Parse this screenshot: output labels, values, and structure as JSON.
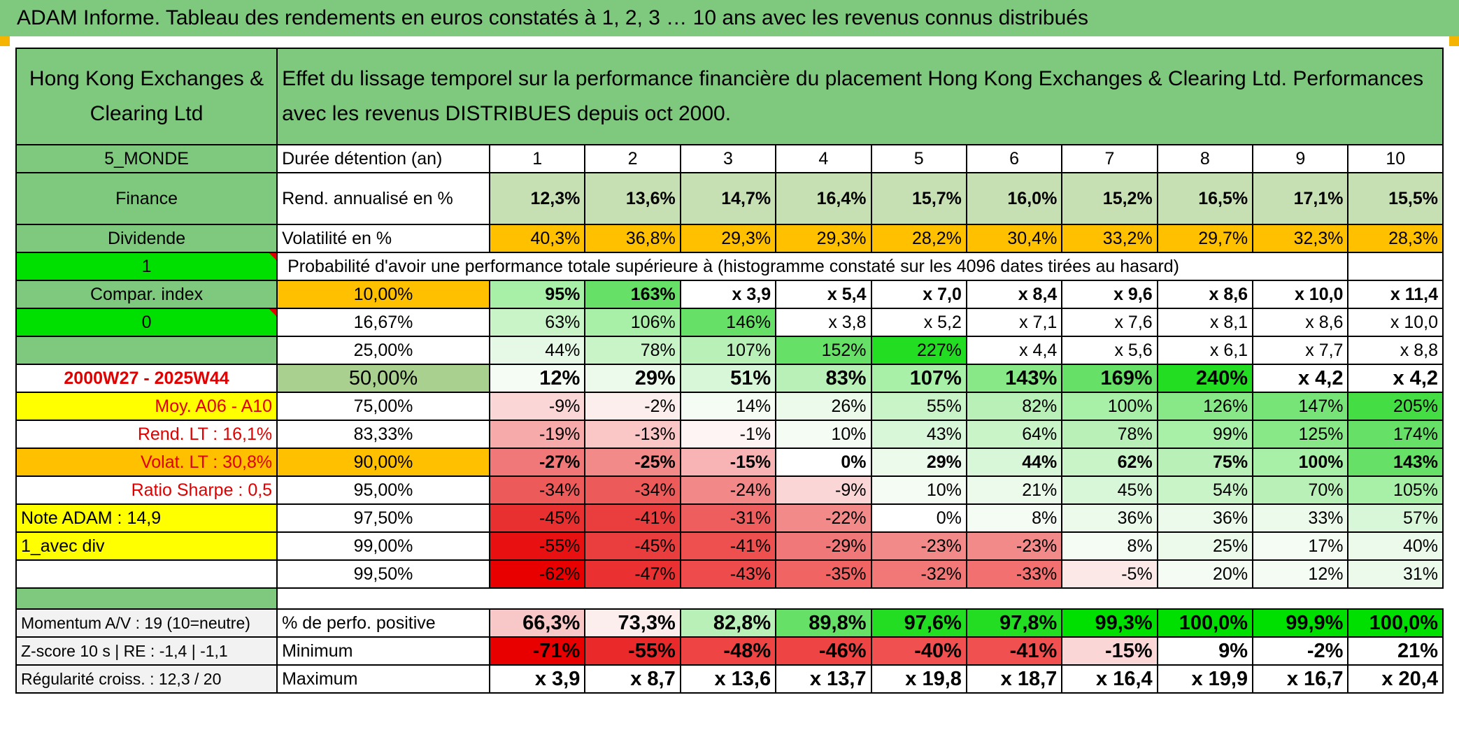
{
  "title": "ADAM Informe. Tableau des rendements en euros constatés à 1, 2, 3 … 10 ans avec les revenus connus distribués",
  "header": {
    "company": "Hong Kong Exchanges & Clearing Ltd",
    "description": "Effet du lissage temporel sur la performance financière du placement Hong Kong Exchanges & Clearing Ltd. Performances avec les revenus DISTRIBUES depuis oct 2000."
  },
  "left": {
    "region": "5_MONDE",
    "sector": "Finance",
    "type": "Dividende",
    "one": "1",
    "compar": "Compar. index",
    "zero": "0",
    "period": "2000W27 - 2025W44",
    "moy": "Moy. A06 - A10",
    "rend_lt": "Rend. LT :   16,1%",
    "volat_lt": "Volat. LT :   30,8%",
    "sharpe": "Ratio Sharpe :    0,5",
    "note": "Note ADAM : 14,9",
    "div": "1_avec div",
    "momentum": "Momentum A/V : 19 (10=neutre)",
    "zscore": "Z-score 10 s | RE : -1,4 | -1,1",
    "regularite": "Régularité croiss. : 12,3 / 20"
  },
  "duration": {
    "label": "Durée détention (an)",
    "years": [
      "1",
      "2",
      "3",
      "4",
      "5",
      "6",
      "7",
      "8",
      "9",
      "10"
    ]
  },
  "rend": {
    "label": "Rend. annualisé en %",
    "values": [
      "12,3%",
      "13,6%",
      "14,7%",
      "16,4%",
      "15,7%",
      "16,0%",
      "15,2%",
      "16,5%",
      "17,1%",
      "15,5%"
    ]
  },
  "vol": {
    "label": "Volatilité en %",
    "values": [
      "40,3%",
      "36,8%",
      "29,3%",
      "29,3%",
      "28,2%",
      "30,4%",
      "33,2%",
      "29,7%",
      "32,3%",
      "28,3%"
    ]
  },
  "prob_title": "Probabilité d'avoir une performance totale supérieure à (histogramme constaté sur les 4096 dates tirées au hasard)",
  "prob_rows": [
    {
      "pct": "10,00%",
      "cells": [
        "95%",
        "163%",
        "x 3,9",
        "x 5,4",
        "x 7,0",
        "x 8,4",
        "x 9,6",
        "x 8,6",
        "x 10,0",
        "x 11,4"
      ]
    },
    {
      "pct": "16,67%",
      "cells": [
        "63%",
        "106%",
        "146%",
        "x 3,8",
        "x 5,2",
        "x 7,1",
        "x 7,6",
        "x 8,1",
        "x 8,6",
        "x 10,0"
      ]
    },
    {
      "pct": "25,00%",
      "cells": [
        "44%",
        "78%",
        "107%",
        "152%",
        "227%",
        "x 4,4",
        "x 5,6",
        "x 6,1",
        "x 7,7",
        "x 8,8"
      ]
    },
    {
      "pct": "50,00%",
      "cells": [
        "12%",
        "29%",
        "51%",
        "83%",
        "107%",
        "143%",
        "169%",
        "240%",
        "x 4,2",
        "x 4,2"
      ]
    },
    {
      "pct": "75,00%",
      "cells": [
        "-9%",
        "-2%",
        "14%",
        "26%",
        "55%",
        "82%",
        "100%",
        "126%",
        "147%",
        "205%"
      ]
    },
    {
      "pct": "83,33%",
      "cells": [
        "-19%",
        "-13%",
        "-1%",
        "10%",
        "43%",
        "64%",
        "78%",
        "99%",
        "125%",
        "174%"
      ]
    },
    {
      "pct": "90,00%",
      "cells": [
        "-27%",
        "-25%",
        "-15%",
        "0%",
        "29%",
        "44%",
        "62%",
        "75%",
        "100%",
        "143%"
      ]
    },
    {
      "pct": "95,00%",
      "cells": [
        "-34%",
        "-34%",
        "-24%",
        "-9%",
        "10%",
        "21%",
        "45%",
        "54%",
        "70%",
        "105%"
      ]
    },
    {
      "pct": "97,50%",
      "cells": [
        "-45%",
        "-41%",
        "-31%",
        "-22%",
        "0%",
        "8%",
        "36%",
        "36%",
        "33%",
        "57%"
      ]
    },
    {
      "pct": "99,00%",
      "cells": [
        "-55%",
        "-45%",
        "-41%",
        "-29%",
        "-23%",
        "-23%",
        "8%",
        "25%",
        "17%",
        "40%"
      ]
    },
    {
      "pct": "99,50%",
      "cells": [
        "-62%",
        "-47%",
        "-43%",
        "-35%",
        "-32%",
        "-33%",
        "-5%",
        "20%",
        "12%",
        "31%"
      ]
    }
  ],
  "pos": {
    "label": "% de perfo. positive",
    "values": [
      "66,3%",
      "73,3%",
      "82,8%",
      "89,8%",
      "97,6%",
      "97,8%",
      "99,3%",
      "100,0%",
      "99,9%",
      "100,0%"
    ]
  },
  "min": {
    "label": "Minimum",
    "values": [
      "-71%",
      "-55%",
      "-48%",
      "-46%",
      "-40%",
      "-41%",
      "-15%",
      "9%",
      "-2%",
      "21%"
    ]
  },
  "max": {
    "label": "Maximum",
    "values": [
      "x 3,9",
      "x 8,7",
      "x 13,6",
      "x 13,7",
      "x 19,8",
      "x 18,7",
      "x 16,4",
      "x 19,9",
      "x 16,7",
      "x 20,4"
    ]
  },
  "colors": {
    "header_green": "#7fc97f",
    "bright_green": "#00e000",
    "orange": "#ffc000",
    "yellow": "#ffff00",
    "red_text": "#e00000"
  }
}
